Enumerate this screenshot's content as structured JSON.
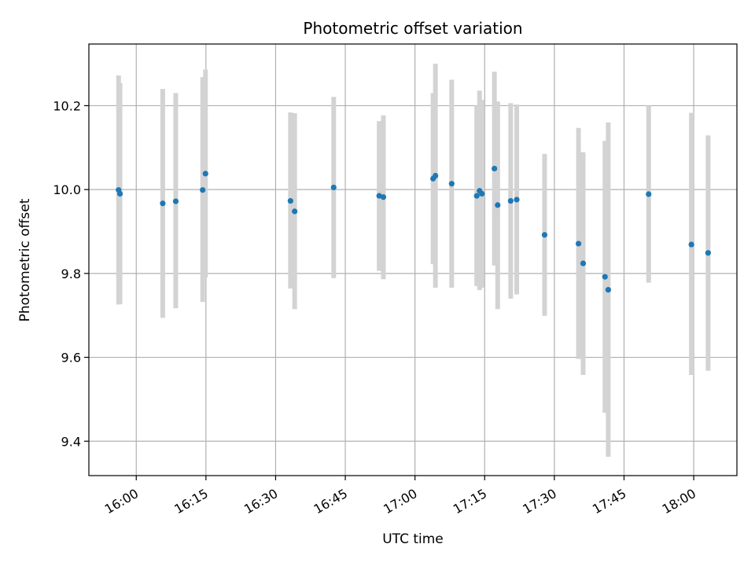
{
  "chart_data": {
    "type": "scatter",
    "title": "Photometric offset variation",
    "xlabel": "UTC time",
    "ylabel": "Photometric offset",
    "x_tick_labels": [
      "16:00",
      "16:15",
      "16:30",
      "16:45",
      "17:00",
      "17:15",
      "17:30",
      "17:45",
      "18:00"
    ],
    "y_tick_labels": [
      "9.4",
      "9.6",
      "9.8",
      "10.0",
      "10.2"
    ],
    "x_ticks_minutes": [
      960,
      975,
      990,
      1005,
      1020,
      1035,
      1050,
      1065,
      1080
    ],
    "y_ticks": [
      9.4,
      9.6,
      9.8,
      10.0,
      10.2
    ],
    "xlim_minutes": [
      949.8,
      1089.3
    ],
    "ylim": [
      9.318,
      10.347
    ],
    "grid": true,
    "colors": {
      "point": "#1f77b4",
      "errorbar": "#d3d3d3",
      "grid": "#b0b0b0"
    },
    "points": [
      {
        "t": "15:56:12",
        "y": 9.999,
        "lo": 9.726,
        "hi": 10.272
      },
      {
        "t": "15:56:30",
        "y": 9.99,
        "lo": 9.727,
        "hi": 10.254
      },
      {
        "t": "16:05:42",
        "y": 9.967,
        "lo": 9.694,
        "hi": 10.24
      },
      {
        "t": "16:08:30",
        "y": 9.972,
        "lo": 9.717,
        "hi": 10.23
      },
      {
        "t": "16:14:18",
        "y": 9.999,
        "lo": 9.732,
        "hi": 10.268
      },
      {
        "t": "16:14:54",
        "y": 10.038,
        "lo": 9.79,
        "hi": 10.286
      },
      {
        "t": "16:33:12",
        "y": 9.973,
        "lo": 9.764,
        "hi": 10.184
      },
      {
        "t": "16:34:06",
        "y": 9.948,
        "lo": 9.715,
        "hi": 10.182
      },
      {
        "t": "16:42:30",
        "y": 10.005,
        "lo": 9.789,
        "hi": 10.221
      },
      {
        "t": "16:52:18",
        "y": 9.985,
        "lo": 9.806,
        "hi": 10.163
      },
      {
        "t": "16:53:12",
        "y": 9.982,
        "lo": 9.786,
        "hi": 10.177
      },
      {
        "t": "17:03:54",
        "y": 10.026,
        "lo": 9.822,
        "hi": 10.23
      },
      {
        "t": "17:04:24",
        "y": 10.033,
        "lo": 9.766,
        "hi": 10.3
      },
      {
        "t": "17:07:54",
        "y": 10.014,
        "lo": 9.766,
        "hi": 10.262
      },
      {
        "t": "17:13:18",
        "y": 9.985,
        "lo": 9.77,
        "hi": 10.2
      },
      {
        "t": "17:13:54",
        "y": 9.997,
        "lo": 9.76,
        "hi": 10.236
      },
      {
        "t": "17:14:24",
        "y": 9.99,
        "lo": 9.766,
        "hi": 10.214
      },
      {
        "t": "17:17:06",
        "y": 10.05,
        "lo": 9.819,
        "hi": 10.281
      },
      {
        "t": "17:17:48",
        "y": 9.963,
        "lo": 9.715,
        "hi": 10.21
      },
      {
        "t": "17:20:36",
        "y": 9.973,
        "lo": 9.74,
        "hi": 10.206
      },
      {
        "t": "17:21:54",
        "y": 9.976,
        "lo": 9.75,
        "hi": 10.203
      },
      {
        "t": "17:27:54",
        "y": 9.892,
        "lo": 9.699,
        "hi": 10.085
      },
      {
        "t": "17:35:12",
        "y": 9.871,
        "lo": 9.596,
        "hi": 10.147
      },
      {
        "t": "17:36:12",
        "y": 9.824,
        "lo": 9.558,
        "hi": 10.089
      },
      {
        "t": "17:40:54",
        "y": 9.792,
        "lo": 9.468,
        "hi": 10.116
      },
      {
        "t": "17:41:36",
        "y": 9.761,
        "lo": 9.363,
        "hi": 10.16
      },
      {
        "t": "17:50:18",
        "y": 9.989,
        "lo": 9.778,
        "hi": 10.2
      },
      {
        "t": "17:59:30",
        "y": 9.869,
        "lo": 9.558,
        "hi": 10.183
      },
      {
        "t": "18:03:06",
        "y": 9.849,
        "lo": 9.568,
        "hi": 10.129
      }
    ]
  }
}
